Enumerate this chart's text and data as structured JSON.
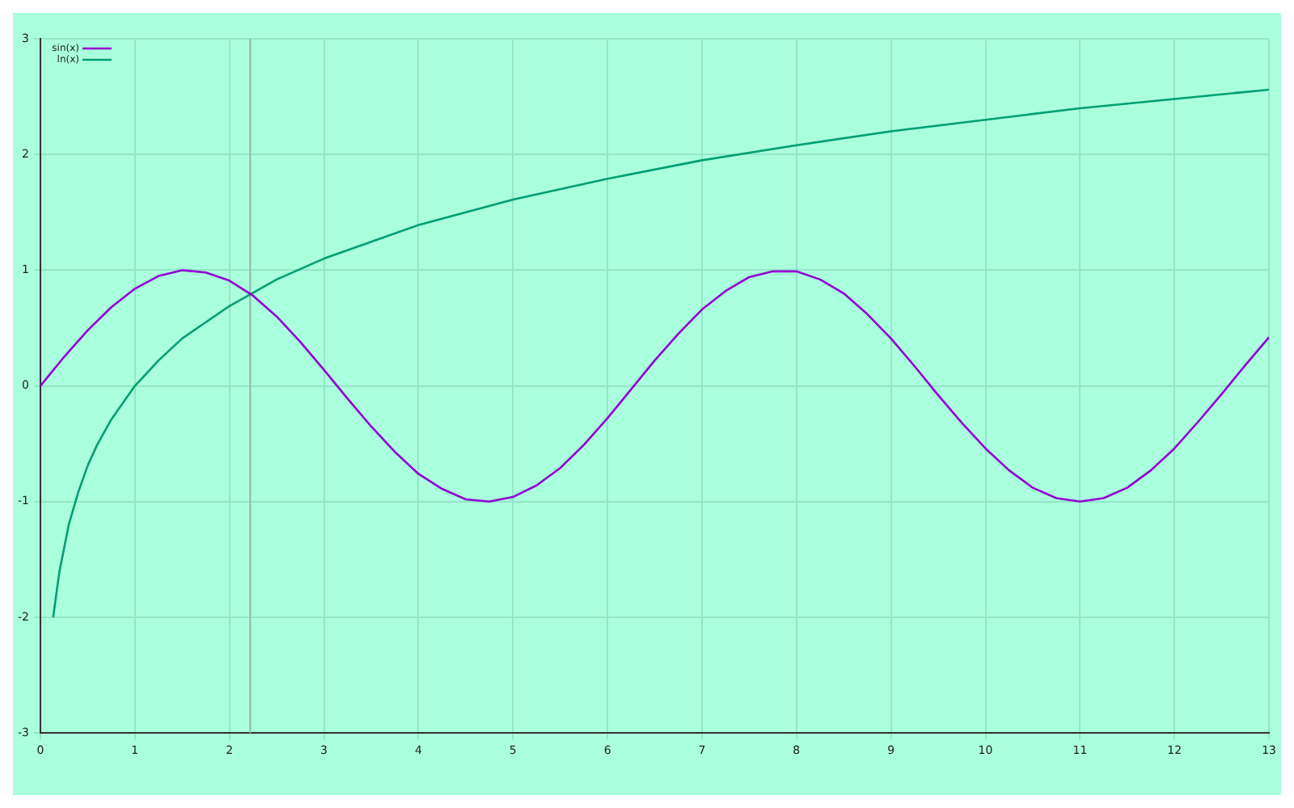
{
  "chart_data": {
    "type": "line",
    "series": [
      {
        "name": "sin(x)",
        "color": "#9400d3",
        "x": [
          0,
          0.25,
          0.5,
          0.75,
          1,
          1.25,
          1.5,
          1.75,
          2,
          2.25,
          2.5,
          2.75,
          3,
          3.25,
          3.5,
          3.75,
          4,
          4.25,
          4.5,
          4.75,
          5,
          5.25,
          5.5,
          5.75,
          6,
          6.25,
          6.5,
          6.75,
          7,
          7.25,
          7.5,
          7.75,
          8,
          8.25,
          8.5,
          8.75,
          9,
          9.25,
          9.5,
          9.75,
          10,
          10.25,
          10.5,
          10.75,
          11,
          11.25,
          11.5,
          11.75,
          12,
          12.25,
          12.5,
          12.75,
          13
        ],
        "values": [
          0,
          0.25,
          0.48,
          0.68,
          0.84,
          0.95,
          1.0,
          0.98,
          0.91,
          0.78,
          0.6,
          0.38,
          0.14,
          -0.11,
          -0.35,
          -0.57,
          -0.76,
          -0.89,
          -0.98,
          -1.0,
          -0.96,
          -0.86,
          -0.71,
          -0.51,
          -0.28,
          -0.03,
          0.22,
          0.45,
          0.66,
          0.82,
          0.94,
          0.99,
          0.99,
          0.92,
          0.8,
          0.62,
          0.41,
          0.17,
          -0.08,
          -0.32,
          -0.54,
          -0.73,
          -0.88,
          -0.97,
          -1.0,
          -0.97,
          -0.88,
          -0.73,
          -0.54,
          -0.31,
          -0.07,
          0.18,
          0.42
        ]
      },
      {
        "name": "ln(x)",
        "color": "#009e73",
        "x": [
          0.135,
          0.2,
          0.3,
          0.4,
          0.5,
          0.6,
          0.75,
          1,
          1.25,
          1.5,
          2,
          2.5,
          3,
          4,
          5,
          6,
          7,
          8,
          9,
          10,
          11,
          12,
          13
        ],
        "values": [
          -2.0,
          -1.61,
          -1.2,
          -0.92,
          -0.69,
          -0.51,
          -0.29,
          0,
          0.22,
          0.41,
          0.69,
          0.92,
          1.1,
          1.39,
          1.61,
          1.79,
          1.95,
          2.08,
          2.2,
          2.3,
          2.4,
          2.48,
          2.56
        ]
      }
    ],
    "xlim": [
      0,
      13
    ],
    "xticks": [
      0,
      1,
      2,
      3,
      4,
      5,
      6,
      7,
      8,
      9,
      10,
      11,
      12,
      13
    ],
    "ylim": [
      -3,
      3
    ],
    "yticks": [
      -3,
      -2,
      -1,
      0,
      1,
      2,
      3
    ],
    "ref_lines": [
      {
        "axis": "x",
        "value": 2.22,
        "color": "#8fb8a8"
      }
    ],
    "grid": true,
    "legend": "top left",
    "marker": "none",
    "line_style": "solid"
  }
}
